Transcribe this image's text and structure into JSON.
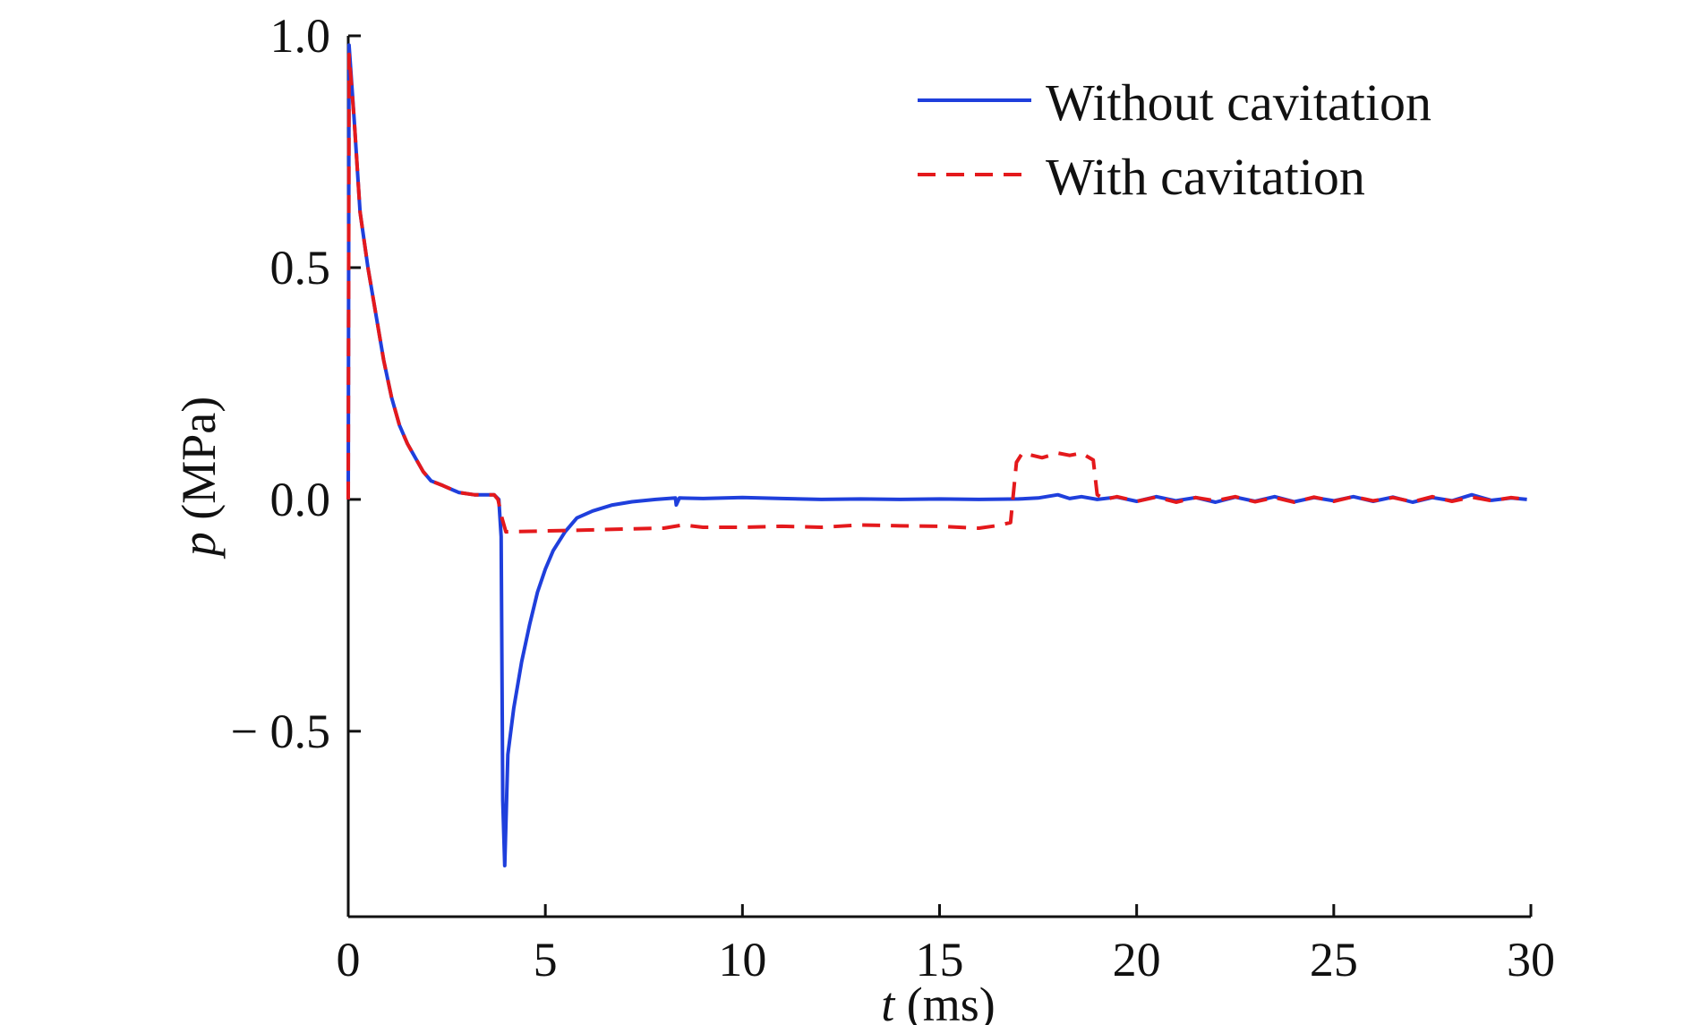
{
  "chart_data": {
    "type": "line",
    "title": "",
    "xlabel": {
      "symbol": "t",
      "unit": "(ms)"
    },
    "ylabel": {
      "symbol": "p",
      "unit": "(MPa)"
    },
    "xlim": [
      0,
      30
    ],
    "ylim": [
      -0.9,
      1.0
    ],
    "xticks": [
      {
        "value": 0,
        "label": "0"
      },
      {
        "value": 5,
        "label": "5"
      },
      {
        "value": 10,
        "label": "10"
      },
      {
        "value": 15,
        "label": "15"
      },
      {
        "value": 20,
        "label": "20"
      },
      {
        "value": 25,
        "label": "25"
      },
      {
        "value": 30,
        "label": "30"
      }
    ],
    "yticks": [
      {
        "value": 1.0,
        "label": "1.0"
      },
      {
        "value": 0.5,
        "label": "0.5"
      },
      {
        "value": 0.0,
        "label": "0.0"
      },
      {
        "value": -0.5,
        "label": "− 0.5"
      }
    ],
    "grid": false,
    "legend_position": "top-right",
    "series": [
      {
        "name": "Without cavitation",
        "color": "#1f3fdc",
        "dash": "solid",
        "points": [
          [
            0,
            0.0
          ],
          [
            0.02,
            0.98
          ],
          [
            0.15,
            0.82
          ],
          [
            0.3,
            0.62
          ],
          [
            0.5,
            0.5
          ],
          [
            0.7,
            0.4
          ],
          [
            0.9,
            0.3
          ],
          [
            1.1,
            0.22
          ],
          [
            1.3,
            0.16
          ],
          [
            1.5,
            0.12
          ],
          [
            1.7,
            0.09
          ],
          [
            1.9,
            0.06
          ],
          [
            2.1,
            0.04
          ],
          [
            2.4,
            0.03
          ],
          [
            2.8,
            0.015
          ],
          [
            3.2,
            0.01
          ],
          [
            3.7,
            0.01
          ],
          [
            3.82,
            0.0
          ],
          [
            3.88,
            -0.08
          ],
          [
            3.92,
            -0.65
          ],
          [
            3.97,
            -0.79
          ],
          [
            4.05,
            -0.55
          ],
          [
            4.2,
            -0.45
          ],
          [
            4.4,
            -0.35
          ],
          [
            4.6,
            -0.27
          ],
          [
            4.8,
            -0.2
          ],
          [
            5.0,
            -0.15
          ],
          [
            5.2,
            -0.11
          ],
          [
            5.5,
            -0.07
          ],
          [
            5.8,
            -0.04
          ],
          [
            6.2,
            -0.025
          ],
          [
            6.7,
            -0.012
          ],
          [
            7.2,
            -0.005
          ],
          [
            7.8,
            0.0
          ],
          [
            8.3,
            0.003
          ],
          [
            8.32,
            -0.012
          ],
          [
            8.4,
            0.003
          ],
          [
            9,
            0.002
          ],
          [
            10,
            0.004
          ],
          [
            11,
            0.002
          ],
          [
            12,
            0.0
          ],
          [
            13,
            0.001
          ],
          [
            14,
            0.0
          ],
          [
            15,
            0.001
          ],
          [
            16,
            0.0
          ],
          [
            17,
            0.001
          ],
          [
            17.5,
            0.003
          ],
          [
            18,
            0.01
          ],
          [
            18.3,
            0.002
          ],
          [
            18.6,
            0.006
          ],
          [
            19,
            0.0
          ],
          [
            19.5,
            0.005
          ],
          [
            20,
            -0.004
          ],
          [
            20.5,
            0.006
          ],
          [
            21,
            -0.003
          ],
          [
            21.5,
            0.004
          ],
          [
            22,
            -0.006
          ],
          [
            22.5,
            0.005
          ],
          [
            23,
            -0.004
          ],
          [
            23.5,
            0.006
          ],
          [
            24,
            -0.005
          ],
          [
            24.5,
            0.004
          ],
          [
            25,
            -0.003
          ],
          [
            25.5,
            0.006
          ],
          [
            26,
            -0.004
          ],
          [
            26.5,
            0.005
          ],
          [
            27,
            -0.006
          ],
          [
            27.5,
            0.004
          ],
          [
            28,
            -0.003
          ],
          [
            28.5,
            0.01
          ],
          [
            29,
            -0.002
          ],
          [
            29.5,
            0.003
          ],
          [
            29.9,
            0.0
          ]
        ]
      },
      {
        "name": "With cavitation",
        "color": "#e4191c",
        "dash": "20 12",
        "points": [
          [
            0,
            0.0
          ],
          [
            0.02,
            0.96
          ],
          [
            0.15,
            0.82
          ],
          [
            0.3,
            0.62
          ],
          [
            0.5,
            0.5
          ],
          [
            0.7,
            0.4
          ],
          [
            0.9,
            0.3
          ],
          [
            1.1,
            0.22
          ],
          [
            1.3,
            0.16
          ],
          [
            1.5,
            0.12
          ],
          [
            1.7,
            0.09
          ],
          [
            1.9,
            0.06
          ],
          [
            2.1,
            0.04
          ],
          [
            2.4,
            0.03
          ],
          [
            2.8,
            0.015
          ],
          [
            3.2,
            0.01
          ],
          [
            3.7,
            0.01
          ],
          [
            3.8,
            0.0
          ],
          [
            3.9,
            -0.04
          ],
          [
            4.0,
            -0.07
          ],
          [
            5,
            -0.068
          ],
          [
            6,
            -0.066
          ],
          [
            7,
            -0.064
          ],
          [
            8,
            -0.062
          ],
          [
            8.5,
            -0.055
          ],
          [
            9,
            -0.06
          ],
          [
            10,
            -0.06
          ],
          [
            11,
            -0.058
          ],
          [
            12,
            -0.06
          ],
          [
            13,
            -0.055
          ],
          [
            14,
            -0.057
          ],
          [
            15,
            -0.058
          ],
          [
            15.5,
            -0.06
          ],
          [
            16,
            -0.062
          ],
          [
            16.5,
            -0.056
          ],
          [
            16.8,
            -0.05
          ],
          [
            16.95,
            0.08
          ],
          [
            17.1,
            0.1
          ],
          [
            17.6,
            0.09
          ],
          [
            18,
            0.1
          ],
          [
            18.3,
            0.095
          ],
          [
            18.6,
            0.1
          ],
          [
            18.9,
            0.085
          ],
          [
            19.0,
            0.01
          ],
          [
            19.2,
            0.0
          ],
          [
            19.5,
            0.006
          ],
          [
            20,
            -0.004
          ],
          [
            20.5,
            0.005
          ],
          [
            21,
            -0.006
          ],
          [
            21.5,
            0.004
          ],
          [
            22,
            -0.003
          ],
          [
            22.5,
            0.006
          ],
          [
            23,
            -0.005
          ],
          [
            23.5,
            0.004
          ],
          [
            24,
            -0.006
          ],
          [
            24.5,
            0.005
          ],
          [
            25,
            -0.004
          ],
          [
            25.5,
            0.006
          ],
          [
            26,
            -0.003
          ],
          [
            26.5,
            0.004
          ],
          [
            27,
            -0.005
          ],
          [
            27.5,
            0.006
          ],
          [
            28,
            -0.004
          ],
          [
            28.5,
            0.005
          ],
          [
            29,
            -0.003
          ],
          [
            29.5,
            0.004
          ],
          [
            29.9,
            0.0
          ]
        ]
      }
    ]
  }
}
